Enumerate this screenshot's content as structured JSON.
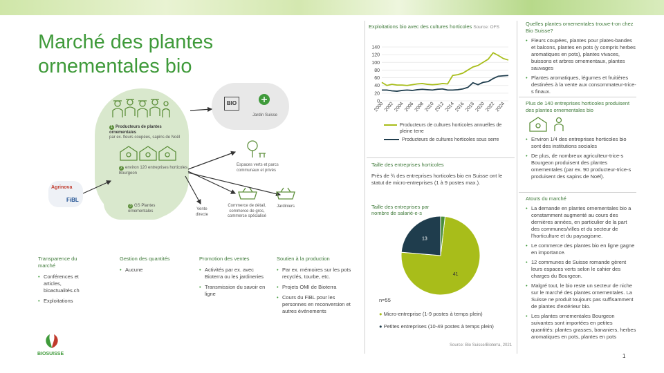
{
  "title": "Marché des plantes ornementales bio",
  "diagram": {
    "producers": {
      "num": "1",
      "title": "Producteurs de plantes ornementales",
      "sub": "par ex. fleurs coupées, sapins de Noël"
    },
    "bourgeon": {
      "num": "2",
      "text": "environ 120 entreprises horticoles Bourgeon"
    },
    "gs": {
      "num": "3",
      "text": "GS Plantes ornementales"
    },
    "bio_logo": "BIO",
    "jardin_suisse": "Jardin Suisse",
    "agrinova": "Agrinova",
    "fibl": "FiBL",
    "espaces": "Espaces verts et parcs communaux et privés",
    "vente": "Vente directe",
    "commerces": "Commerce de détail, commerce de gros, commerce spécialisé",
    "jardiniers": "Jardiniers"
  },
  "columns": [
    {
      "title": "Transparence du marché",
      "items": [
        "Conférences et articles, bioactualités.ch",
        "Exploitations"
      ]
    },
    {
      "title": "Gestion des quantités",
      "items": [
        "Aucune"
      ]
    },
    {
      "title": "Promotion des ventes",
      "items": [
        "Activités par ex. avec Bioterra ou les jardineries",
        "Transmission du savoir en ligne"
      ]
    },
    {
      "title": "Soutien à la production",
      "items": [
        "Par ex. mémoires sur les pots recyclés, tourbe, etc.",
        "Projets OMI de Bioterra",
        "Cours du FiBL pour les personnes en reconversion et autres événements"
      ]
    }
  ],
  "logo_text": "BIOSUISSE",
  "line_chart": {
    "title": "Exploitations bio avec des cultures horticoles",
    "source": "Source: OFS",
    "chart_data": {
      "type": "line",
      "x": [
        "2000",
        "2002",
        "2004",
        "2006",
        "2008",
        "2010",
        "2012",
        "2014",
        "2016",
        "2018",
        "2020",
        "2022",
        "2024"
      ],
      "ylim": [
        0,
        140
      ],
      "yticks": [
        "0",
        "20",
        "40",
        "60",
        "80",
        "100",
        "120",
        "140"
      ],
      "series": [
        {
          "name": "Producteurs de cultures horticoles annuelles de pleine terre",
          "color": "#a8bd1a",
          "x": [
            2000,
            2001,
            2002,
            2003,
            2004,
            2005,
            2006,
            2007,
            2008,
            2009,
            2010,
            2011,
            2012,
            2013,
            2014,
            2015,
            2016,
            2017,
            2018,
            2019,
            2020,
            2021,
            2022,
            2023,
            2024,
            2025
          ],
          "values": [
            48,
            40,
            43,
            41,
            41,
            40,
            42,
            44,
            45,
            43,
            42,
            43,
            45,
            44,
            66,
            68,
            72,
            80,
            88,
            92,
            100,
            108,
            125,
            118,
            110,
            106
          ]
        },
        {
          "name": "Producteurs de cultures horticoles sous serre",
          "color": "#1f3d4d",
          "x": [
            2000,
            2001,
            2002,
            2003,
            2004,
            2005,
            2006,
            2007,
            2008,
            2009,
            2010,
            2011,
            2012,
            2013,
            2014,
            2015,
            2016,
            2017,
            2018,
            2019,
            2020,
            2021,
            2022,
            2023,
            2024,
            2025
          ],
          "values": [
            28,
            28,
            26,
            25,
            27,
            28,
            27,
            29,
            30,
            29,
            28,
            30,
            31,
            28,
            28,
            29,
            31,
            35,
            47,
            42,
            48,
            50,
            58,
            64,
            65,
            66
          ]
        }
      ]
    }
  },
  "taille": {
    "title": "Taille des entreprises horticoles",
    "text": "Près de ¾ des entreprises horticoles bio en Suisse ont le statut de micro-entreprises (1 à 9 postes max.)."
  },
  "pie": {
    "title": "Taille des entreprises par nombre de salarié-e-s",
    "n": "n=55",
    "source": "Source: Bio Suisse/Bioterra, 2021",
    "chart_data": {
      "type": "pie",
      "slices": [
        {
          "label": "Micro-entreprise (1-9 postes à temps plein)",
          "value": 41,
          "color": "#a8bd1a"
        },
        {
          "label": "Petites entreprises (10-49 postes à temps plein)",
          "value": 13,
          "color": "#1f3d4d"
        },
        {
          "label": "",
          "value": 1,
          "color": "#4a8f3a"
        }
      ]
    }
  },
  "right": {
    "q_title": "Quelles plantes ornementales trouve-t-on chez Bio Suisse?",
    "q_items": [
      "Fleurs coupées, plantes pour plates-bandes et balcons, plantes en pots (y compris herbes aromatiques en pots), plantes vivaces, buissons et arbres ornementaux, plantes sauvages",
      "Plantes aromatiques, légumes et fruitières destinées à la vente aux consommateur-trice-s finaux."
    ],
    "p_title": "Plus de 140 entreprises horticoles produisent des plantes ornementales bio",
    "p_items": [
      "Environ 1/4 des entreprises horticoles bio sont des institutions sociales",
      "De plus, de nombreux agriculteur-trice-s Bourgeon produisent des plantes ornementales (par ex. 90 producteur-trice-s produisent des sapins de Noël)."
    ],
    "a_title": "Atouts du marché",
    "a_items": [
      "La demande en plantes ornementales bio a constamment augmenté au cours des dernières années, en particulier de la part des communes/villes et du secteur de l'horticulture et du paysagisme.",
      "Le commerce des plantes bio en ligne gagne en importance.",
      "12 communes de Suisse romande gèrent leurs espaces verts selon le cahier des charges du Bourgeon.",
      "Malgré tout, le bio reste un secteur de niche sur le marché des plantes ornementales. La Suisse ne produit toujours pas suffisamment de plantes d'extérieur bio.",
      "Les plantes ornementales Bourgeon suivantes sont importées en petites quantités: plantes grasses, bananiers, herbes aromatiques en pots, plantes en pots"
    ]
  },
  "page_number": "1"
}
